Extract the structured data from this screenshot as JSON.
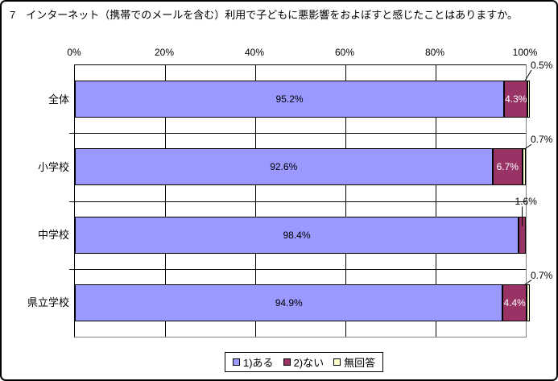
{
  "chart_data": {
    "type": "bar",
    "variant": "horizontal-stacked",
    "title": "7　インターネット（携帯でのメールを含む）利用で子どもに悪影響をおよぼすと感じたことはありますか。",
    "x_axis": {
      "ticks": [
        "0%",
        "20%",
        "40%",
        "60%",
        "80%",
        "100%"
      ],
      "range": [
        0,
        100
      ],
      "unit": "%",
      "grid": true,
      "position": "top"
    },
    "categories": [
      "全体",
      "小学校",
      "中学校",
      "県立学校"
    ],
    "series": [
      {
        "name": "1)ある",
        "color": "#9999FF",
        "label_color": "#000000",
        "values": [
          95.2,
          92.6,
          98.4,
          94.9
        ]
      },
      {
        "name": "2)ない",
        "color": "#993366",
        "label_color": "#FFFFFF",
        "values": [
          4.3,
          6.7,
          1.6,
          4.4
        ]
      },
      {
        "name": "無回答",
        "color": "#FFFFCC",
        "label_color": "#000000",
        "values": [
          0.5,
          0.7,
          0.0,
          0.7
        ]
      }
    ],
    "rows": [
      {
        "category": "全体",
        "segments": [
          {
            "series": "1)ある",
            "value": 95.2,
            "label": "95.2%",
            "placement": "inside"
          },
          {
            "series": "2)ない",
            "value": 4.3,
            "label": "4.3%",
            "placement": "inside"
          },
          {
            "series": "無回答",
            "value": 0.5,
            "label": "0.5%",
            "placement": "callout"
          }
        ]
      },
      {
        "category": "小学校",
        "segments": [
          {
            "series": "1)ある",
            "value": 92.6,
            "label": "92.6%",
            "placement": "inside"
          },
          {
            "series": "2)ない",
            "value": 6.7,
            "label": "6.7%",
            "placement": "inside"
          },
          {
            "series": "無回答",
            "value": 0.7,
            "label": "0.7%",
            "placement": "callout"
          }
        ]
      },
      {
        "category": "中学校",
        "segments": [
          {
            "series": "1)ある",
            "value": 98.4,
            "label": "98.4%",
            "placement": "inside"
          },
          {
            "series": "2)ない",
            "value": 1.6,
            "label": "1.6%",
            "placement": "callout"
          },
          {
            "series": "無回答",
            "value": 0.0,
            "label": "",
            "placement": "none"
          }
        ]
      },
      {
        "category": "県立学校",
        "segments": [
          {
            "series": "1)ある",
            "value": 94.9,
            "label": "94.9%",
            "placement": "inside"
          },
          {
            "series": "2)ない",
            "value": 4.4,
            "label": "4.4%",
            "placement": "inside"
          },
          {
            "series": "無回答",
            "value": 0.7,
            "label": "0.7%",
            "placement": "callout"
          }
        ]
      }
    ],
    "legend": {
      "position": "bottom",
      "items": [
        "1)ある",
        "2)ない",
        "無回答"
      ]
    },
    "colors": {
      "bar_border": "#000000",
      "grid_line": "#000000",
      "plot_border": "#808080",
      "leader_line": "#000000",
      "background": "#FFFFFF"
    }
  }
}
